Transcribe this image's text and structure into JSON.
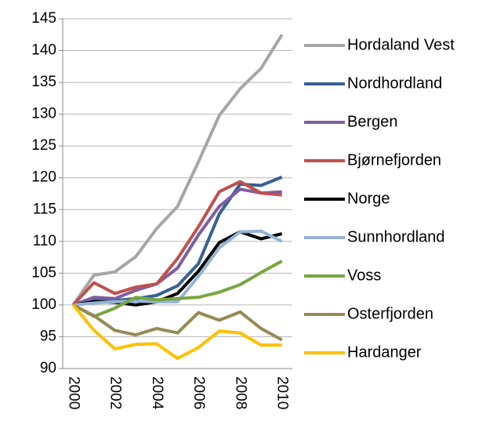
{
  "chart_data": {
    "type": "line",
    "categories": [
      "2000",
      null,
      "2002",
      null,
      "2004",
      null,
      "2006",
      null,
      "2008",
      null,
      "2010"
    ],
    "ylim": [
      90,
      145
    ],
    "yticks": [
      90,
      95,
      100,
      105,
      110,
      115,
      120,
      125,
      130,
      135,
      140,
      145
    ],
    "grid": true,
    "legend": "right",
    "series": [
      {
        "name": "Hordaland Vest",
        "color": "#a6a6a6",
        "values": [
          100,
          104.7,
          105.2,
          107.6,
          112,
          115.5,
          122.5,
          129.8,
          134,
          137.2,
          142.5
        ]
      },
      {
        "name": "Nordhordland",
        "color": "#376092",
        "values": [
          100,
          100.8,
          100.7,
          101,
          101.5,
          103,
          106.5,
          114.3,
          119,
          118.8,
          120.1
        ]
      },
      {
        "name": "Bergen",
        "color": "#7d5f9f",
        "values": [
          100,
          101.2,
          101,
          102.3,
          103.3,
          105.8,
          111,
          115.5,
          118.2,
          117.6,
          117.8
        ]
      },
      {
        "name": "Bjørnefjorden",
        "color": "#c0504d",
        "values": [
          100,
          103.5,
          101.8,
          102.8,
          103.3,
          107.3,
          112.3,
          117.8,
          119.4,
          117.6,
          117.3
        ]
      },
      {
        "name": "Norge",
        "color": "#000000",
        "values": [
          100,
          100.5,
          100.4,
          100,
          100.5,
          101.8,
          105.3,
          109.8,
          111.5,
          110.4,
          111.2
        ]
      },
      {
        "name": "Sunnhordland",
        "color": "#95b3d7",
        "values": [
          100,
          100.3,
          100.5,
          100.6,
          100.5,
          100.5,
          104.5,
          109,
          111.5,
          111.6,
          110
        ]
      },
      {
        "name": "Voss",
        "color": "#77a640",
        "values": [
          100,
          98.2,
          99.5,
          101.2,
          100.8,
          101,
          101.2,
          102,
          103.2,
          105.1,
          106.9
        ]
      },
      {
        "name": "Osterfjorden",
        "color": "#948a54",
        "values": [
          100,
          98.3,
          96,
          95.3,
          96.3,
          95.6,
          98.8,
          97.6,
          98.9,
          96.3,
          94.5
        ]
      },
      {
        "name": "Hardanger",
        "color": "#ffc000",
        "values": [
          100,
          96,
          93.1,
          93.8,
          93.9,
          91.6,
          93.3,
          95.9,
          95.6,
          93.7,
          93.7
        ]
      }
    ]
  }
}
